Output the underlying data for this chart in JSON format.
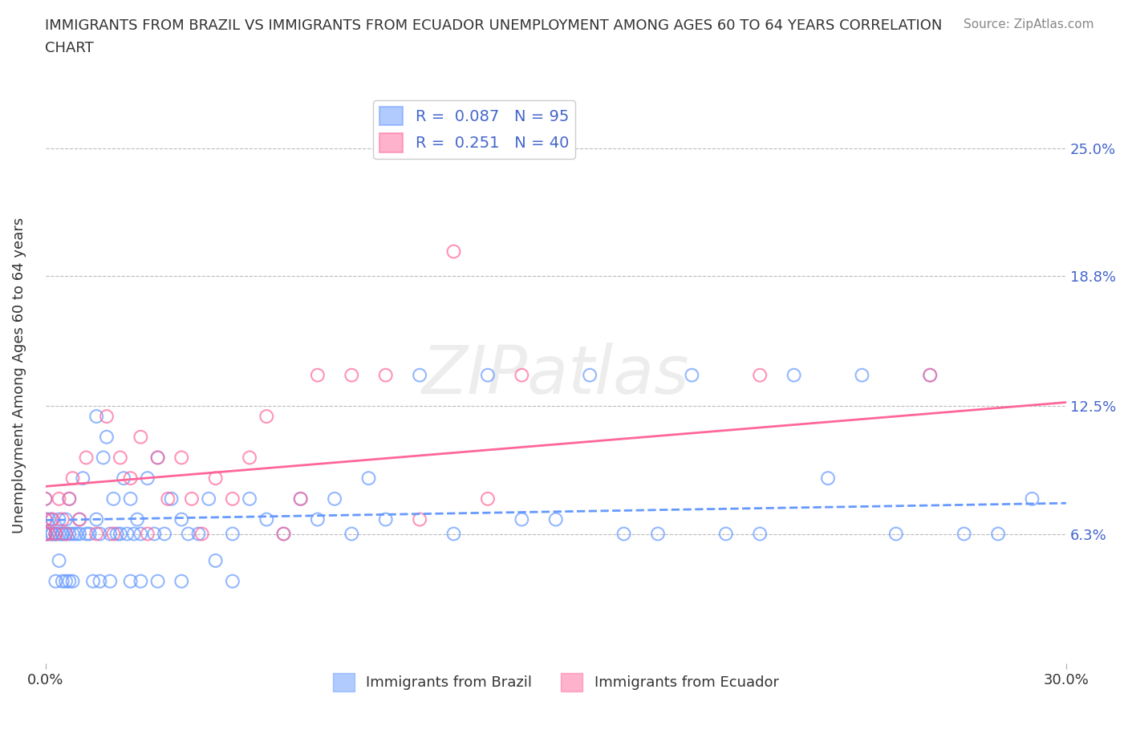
{
  "title_line1": "IMMIGRANTS FROM BRAZIL VS IMMIGRANTS FROM ECUADOR UNEMPLOYMENT AMONG AGES 60 TO 64 YEARS CORRELATION",
  "title_line2": "CHART",
  "source_text": "Source: ZipAtlas.com",
  "ylabel": "Unemployment Among Ages 60 to 64 years",
  "xlim": [
    0.0,
    0.3
  ],
  "ylim": [
    0.0,
    0.28
  ],
  "xtick_vals": [
    0.0,
    0.3
  ],
  "xtick_labels": [
    "0.0%",
    "30.0%"
  ],
  "ytick_vals": [
    0.0,
    0.063,
    0.125,
    0.188,
    0.25
  ],
  "ytick_labels": [
    "",
    "6.3%",
    "12.5%",
    "18.8%",
    "25.0%"
  ],
  "brazil_color": "#6699ff",
  "ecuador_color": "#ff6699",
  "brazil_R": 0.087,
  "brazil_N": 95,
  "ecuador_R": 0.251,
  "ecuador_N": 40,
  "watermark_text": "ZIPatlas",
  "background_color": "#ffffff",
  "brazil_scatter_x": [
    0.0,
    0.0,
    0.0,
    0.0,
    0.0,
    0.0,
    0.001,
    0.001,
    0.002,
    0.002,
    0.002,
    0.003,
    0.003,
    0.004,
    0.004,
    0.005,
    0.005,
    0.006,
    0.006,
    0.007,
    0.007,
    0.008,
    0.009,
    0.01,
    0.01,
    0.011,
    0.012,
    0.013,
    0.015,
    0.015,
    0.016,
    0.017,
    0.018,
    0.019,
    0.02,
    0.021,
    0.022,
    0.023,
    0.024,
    0.025,
    0.026,
    0.027,
    0.028,
    0.03,
    0.032,
    0.033,
    0.035,
    0.037,
    0.04,
    0.042,
    0.045,
    0.048,
    0.05,
    0.055,
    0.06,
    0.065,
    0.07,
    0.075,
    0.08,
    0.085,
    0.09,
    0.095,
    0.1,
    0.11,
    0.12,
    0.13,
    0.14,
    0.15,
    0.16,
    0.17,
    0.18,
    0.19,
    0.2,
    0.21,
    0.22,
    0.23,
    0.24,
    0.25,
    0.26,
    0.27,
    0.28,
    0.29,
    0.003,
    0.004,
    0.005,
    0.006,
    0.007,
    0.008,
    0.014,
    0.016,
    0.019,
    0.025,
    0.028,
    0.033,
    0.04,
    0.055
  ],
  "brazil_scatter_y": [
    0.063,
    0.063,
    0.07,
    0.08,
    0.063,
    0.063,
    0.063,
    0.07,
    0.063,
    0.063,
    0.07,
    0.063,
    0.063,
    0.063,
    0.07,
    0.063,
    0.063,
    0.063,
    0.07,
    0.063,
    0.08,
    0.063,
    0.063,
    0.07,
    0.063,
    0.09,
    0.063,
    0.063,
    0.07,
    0.12,
    0.063,
    0.1,
    0.11,
    0.063,
    0.08,
    0.063,
    0.063,
    0.09,
    0.063,
    0.08,
    0.063,
    0.07,
    0.063,
    0.09,
    0.063,
    0.1,
    0.063,
    0.08,
    0.07,
    0.063,
    0.063,
    0.08,
    0.05,
    0.063,
    0.08,
    0.07,
    0.063,
    0.08,
    0.07,
    0.08,
    0.063,
    0.09,
    0.07,
    0.14,
    0.063,
    0.14,
    0.07,
    0.07,
    0.14,
    0.063,
    0.063,
    0.14,
    0.063,
    0.063,
    0.14,
    0.09,
    0.14,
    0.063,
    0.14,
    0.063,
    0.063,
    0.08,
    0.04,
    0.05,
    0.04,
    0.04,
    0.04,
    0.04,
    0.04,
    0.04,
    0.04,
    0.04,
    0.04,
    0.04,
    0.04,
    0.04
  ],
  "ecuador_scatter_x": [
    0.0,
    0.0,
    0.0,
    0.001,
    0.002,
    0.003,
    0.004,
    0.005,
    0.006,
    0.007,
    0.008,
    0.01,
    0.012,
    0.015,
    0.018,
    0.02,
    0.022,
    0.025,
    0.028,
    0.03,
    0.033,
    0.036,
    0.04,
    0.043,
    0.046,
    0.05,
    0.055,
    0.06,
    0.065,
    0.07,
    0.075,
    0.08,
    0.09,
    0.1,
    0.11,
    0.12,
    0.13,
    0.14,
    0.21,
    0.26
  ],
  "ecuador_scatter_y": [
    0.063,
    0.07,
    0.08,
    0.063,
    0.07,
    0.063,
    0.08,
    0.07,
    0.063,
    0.08,
    0.09,
    0.07,
    0.1,
    0.063,
    0.12,
    0.063,
    0.1,
    0.09,
    0.11,
    0.063,
    0.1,
    0.08,
    0.1,
    0.08,
    0.063,
    0.09,
    0.08,
    0.1,
    0.12,
    0.063,
    0.08,
    0.14,
    0.14,
    0.14,
    0.07,
    0.2,
    0.08,
    0.14,
    0.14,
    0.14
  ]
}
